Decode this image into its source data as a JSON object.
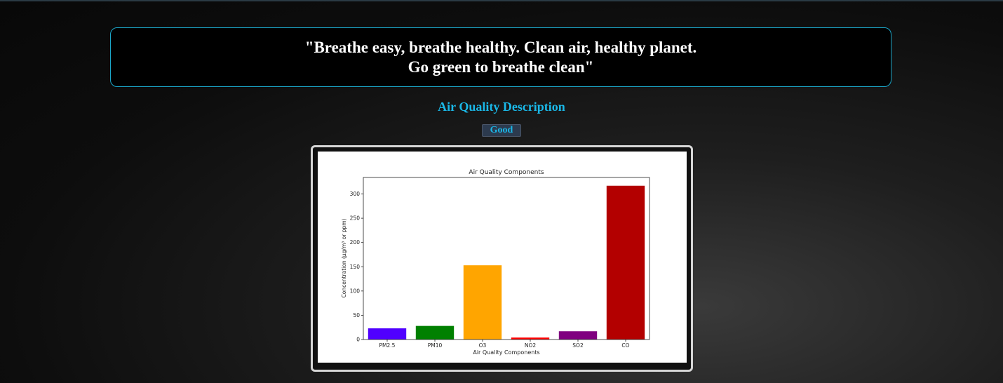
{
  "quote": {
    "line1": "\"Breathe easy, breathe healthy. Clean air, healthy planet.",
    "line2": "Go green to breathe clean\""
  },
  "section_title": "Air Quality Description",
  "status": "Good",
  "colors": {
    "accent": "#1ab8e8",
    "quote_border": "#1ba6c8",
    "badge_bg": "#2c3a4e"
  },
  "chart_data": {
    "type": "bar",
    "title": "Air Quality Components",
    "xlabel": "Air Quality Components",
    "ylabel": "Concentration (μg/m³ or ppm)",
    "categories": [
      "PM2.5",
      "PM10",
      "O3",
      "NO2",
      "SO2",
      "CO"
    ],
    "values": [
      23,
      28,
      153,
      4,
      17,
      317
    ],
    "colors": [
      "#5000ff",
      "#008000",
      "#ffa500",
      "#ff0000",
      "#800080",
      "#b30000"
    ],
    "ylim": [
      0,
      334
    ],
    "yticks": [
      0,
      50,
      100,
      150,
      200,
      250,
      300
    ],
    "grid": false
  }
}
